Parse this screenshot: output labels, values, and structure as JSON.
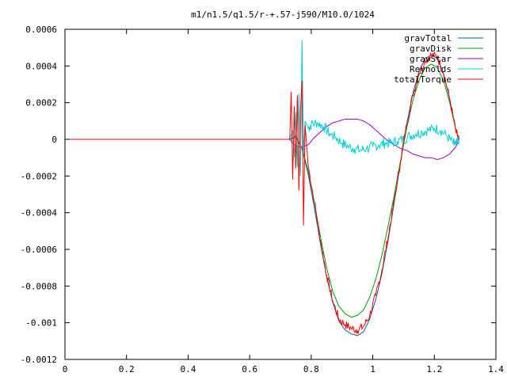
{
  "chart_data": {
    "type": "line",
    "title": "m1/n1.5/q1.5/r-+.57-j590/M10.0/1024",
    "xlabel": "",
    "ylabel": "",
    "xlim": [
      0,
      1.4
    ],
    "ylim": [
      -0.0012,
      0.0006
    ],
    "x_ticks": [
      0,
      0.2,
      0.4,
      0.6,
      0.8,
      1,
      1.2,
      1.4
    ],
    "x_tick_labels": [
      "0",
      "0.2",
      "0.4",
      "0.6",
      "0.8",
      "1",
      "1.2",
      "1.4"
    ],
    "y_ticks": [
      -0.0012,
      -0.001,
      -0.0008,
      -0.0006,
      -0.0004,
      -0.0002,
      0,
      0.0002,
      0.0004,
      0.0006
    ],
    "y_tick_labels": [
      "-0.0012",
      "-0.001",
      "-0.0008",
      "-0.0006",
      "-0.0004",
      "-0.0002",
      "0",
      "0.0002",
      "0.0004",
      "0.0006"
    ],
    "grid": false,
    "legend_position": "top-right",
    "series": [
      {
        "name": "gravTotal",
        "color": "#0060ad",
        "x": [
          0,
          0.73,
          0.75,
          0.77,
          0.79,
          0.81,
          0.83,
          0.85,
          0.87,
          0.89,
          0.91,
          0.93,
          0.95,
          0.97,
          0.99,
          1.01,
          1.03,
          1.05,
          1.07,
          1.09,
          1.11,
          1.13,
          1.15,
          1.17,
          1.19,
          1.21,
          1.23,
          1.25,
          1.27,
          1.28
        ],
        "y": [
          0,
          0,
          2e-05,
          -5e-05,
          -0.00019,
          -0.00037,
          -0.00057,
          -0.00075,
          -0.00089,
          -0.00099,
          -0.00104,
          -0.00106,
          -0.00107,
          -0.00105,
          -0.00098,
          -0.00087,
          -0.00073,
          -0.00055,
          -0.00034,
          -0.00013,
          8e-05,
          0.00025,
          0.00037,
          0.00044,
          0.00046,
          0.00044,
          0.00036,
          0.00022,
          5e-05,
          0
        ]
      },
      {
        "name": "gravDisk",
        "color": "#009e00",
        "x": [
          0,
          0.73,
          0.75,
          0.77,
          0.79,
          0.81,
          0.83,
          0.85,
          0.87,
          0.89,
          0.91,
          0.93,
          0.95,
          0.97,
          0.99,
          1.01,
          1.03,
          1.05,
          1.07,
          1.09,
          1.11,
          1.13,
          1.15,
          1.17,
          1.19,
          1.21,
          1.23,
          1.25,
          1.27,
          1.28
        ],
        "y": [
          0,
          0,
          1e-05,
          -5e-05,
          -0.00017,
          -0.00034,
          -0.00053,
          -0.0007,
          -0.00083,
          -0.00091,
          -0.00095,
          -0.00097,
          -0.00096,
          -0.00093,
          -0.00086,
          -0.00076,
          -0.00063,
          -0.00047,
          -0.0003,
          -0.00012,
          6e-05,
          0.00021,
          0.00032,
          0.00039,
          0.00041,
          0.00039,
          0.00032,
          0.0002,
          5e-05,
          0
        ]
      },
      {
        "name": "gravStar",
        "color": "#9400d3",
        "x": [
          0,
          0.73,
          0.75,
          0.77,
          0.79,
          0.81,
          0.83,
          0.85,
          0.87,
          0.89,
          0.91,
          0.93,
          0.95,
          0.97,
          0.99,
          1.01,
          1.03,
          1.05,
          1.07,
          1.09,
          1.11,
          1.13,
          1.15,
          1.17,
          1.19,
          1.21,
          1.23,
          1.25,
          1.27,
          1.28
        ],
        "y": [
          0,
          0,
          -4e-05,
          -4e-05,
          -3e-05,
          1e-05,
          4e-05,
          7e-05,
          9e-05,
          0.0001,
          0.00011,
          0.00011,
          0.00011,
          0.0001,
          8e-05,
          5e-05,
          2e-05,
          -1e-05,
          -3e-05,
          -5e-05,
          -6e-05,
          -8e-05,
          -9e-05,
          -0.0001,
          -0.0001,
          -0.00011,
          -0.0001,
          -8e-05,
          -4e-05,
          0
        ]
      },
      {
        "name": "Reynolds",
        "color": "#00d0d0",
        "x": [
          0,
          0.73,
          0.74,
          0.745,
          0.75,
          0.755,
          0.76,
          0.765,
          0.77,
          0.775,
          0.78,
          0.79,
          0.8,
          0.82,
          0.84,
          0.86,
          0.88,
          0.9,
          0.92,
          0.94,
          0.96,
          0.98,
          1.0,
          1.02,
          1.04,
          1.06,
          1.08,
          1.1,
          1.12,
          1.14,
          1.16,
          1.18,
          1.2,
          1.22,
          1.24,
          1.26,
          1.27,
          1.28
        ],
        "y": [
          0,
          0,
          5e-05,
          -0.0001,
          0.00015,
          -0.00015,
          0.00025,
          -0.0002,
          0.00054,
          -8e-05,
          0.0001,
          6e-05,
          8e-05,
          9e-05,
          7e-05,
          3e-05,
          1e-05,
          -2e-05,
          -4e-05,
          -5e-05,
          -6e-05,
          -5e-05,
          -4e-05,
          -3e-05,
          -2e-05,
          -2e-05,
          -1e-05,
          0,
          2e-05,
          3e-05,
          4e-05,
          5e-05,
          6e-05,
          5e-05,
          2e-05,
          -2e-05,
          -3e-05,
          0
        ]
      },
      {
        "name": "totalTorque",
        "color": "#ff0000",
        "x": [
          0,
          0.73,
          0.735,
          0.74,
          0.745,
          0.75,
          0.755,
          0.76,
          0.765,
          0.77,
          0.775,
          0.78,
          0.79,
          0.81,
          0.83,
          0.85,
          0.87,
          0.89,
          0.91,
          0.93,
          0.95,
          0.97,
          0.99,
          1.01,
          1.03,
          1.05,
          1.07,
          1.09,
          1.11,
          1.13,
          1.15,
          1.17,
          1.19,
          1.21,
          1.23,
          1.25,
          1.27,
          1.28
        ],
        "y": [
          0,
          0,
          0.00026,
          -0.00022,
          0.00018,
          -0.00016,
          0.00024,
          -0.00028,
          0.00016,
          0.00032,
          -0.00047,
          8e-05,
          -0.00014,
          -0.00034,
          -0.00055,
          -0.00074,
          -0.00088,
          -0.00098,
          -0.00101,
          -0.00103,
          -0.00104,
          -0.00102,
          -0.00096,
          -0.00085,
          -0.00071,
          -0.00053,
          -0.00033,
          -0.00012,
          8e-05,
          0.00024,
          0.00036,
          0.00043,
          0.00046,
          0.00045,
          0.00036,
          0.00022,
          4e-05,
          0
        ]
      }
    ]
  }
}
